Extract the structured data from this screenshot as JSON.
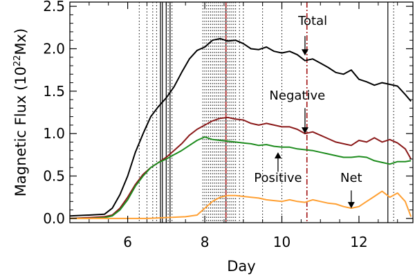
{
  "chart_data": {
    "type": "line",
    "xlabel": "Day",
    "ylabel": "Magnetic Flux (10",
    "ylabel_sup": "22",
    "ylabel_tail": "Mx)",
    "xlim": [
      4.5,
      13.4
    ],
    "ylim": [
      -0.05,
      2.55
    ],
    "xticks": [
      6,
      8,
      10,
      12
    ],
    "xtick_labels": [
      "6",
      "8",
      "10",
      "12"
    ],
    "yticks": [
      0.0,
      0.5,
      1.0,
      1.5,
      2.0,
      2.5
    ],
    "ytick_labels": [
      "0.0",
      "0.5",
      "1.0",
      "1.5",
      "2.0",
      "2.5"
    ],
    "series": [
      {
        "name": "Total",
        "color": "#000000",
        "x": [
          4.5,
          5.0,
          5.4,
          5.6,
          5.8,
          6.0,
          6.2,
          6.4,
          6.6,
          6.8,
          7.0,
          7.2,
          7.4,
          7.6,
          7.8,
          8.0,
          8.2,
          8.4,
          8.6,
          8.8,
          9.0,
          9.2,
          9.4,
          9.6,
          9.8,
          10.0,
          10.2,
          10.4,
          10.6,
          10.8,
          11.0,
          11.2,
          11.4,
          11.6,
          11.8,
          12.0,
          12.2,
          12.4,
          12.6,
          12.8,
          13.0,
          13.2,
          13.35
        ],
        "y": [
          0.03,
          0.04,
          0.05,
          0.12,
          0.28,
          0.5,
          0.78,
          1.0,
          1.2,
          1.32,
          1.42,
          1.55,
          1.72,
          1.88,
          1.98,
          2.02,
          2.1,
          2.12,
          2.09,
          2.1,
          2.06,
          2.0,
          1.99,
          2.02,
          1.97,
          1.95,
          1.97,
          1.93,
          1.86,
          1.88,
          1.83,
          1.78,
          1.72,
          1.7,
          1.75,
          1.64,
          1.61,
          1.57,
          1.6,
          1.58,
          1.56,
          1.46,
          1.38
        ]
      },
      {
        "name": "Negative",
        "color": "#8b1a1a",
        "x": [
          4.5,
          5.0,
          5.4,
          5.6,
          5.8,
          6.0,
          6.2,
          6.4,
          6.6,
          6.8,
          7.0,
          7.2,
          7.4,
          7.6,
          7.8,
          8.0,
          8.2,
          8.4,
          8.6,
          8.8,
          9.0,
          9.2,
          9.4,
          9.6,
          9.8,
          10.0,
          10.2,
          10.4,
          10.6,
          10.8,
          11.0,
          11.2,
          11.4,
          11.6,
          11.8,
          12.0,
          12.2,
          12.4,
          12.6,
          12.8,
          13.0,
          13.2,
          13.35
        ],
        "y": [
          0.0,
          0.01,
          0.02,
          0.04,
          0.12,
          0.25,
          0.4,
          0.52,
          0.6,
          0.66,
          0.72,
          0.8,
          0.88,
          0.98,
          1.05,
          1.1,
          1.15,
          1.18,
          1.19,
          1.17,
          1.16,
          1.12,
          1.1,
          1.12,
          1.1,
          1.08,
          1.08,
          1.05,
          1.0,
          1.02,
          0.98,
          0.94,
          0.9,
          0.88,
          0.86,
          0.92,
          0.9,
          0.95,
          0.9,
          0.93,
          0.89,
          0.82,
          0.7
        ]
      },
      {
        "name": "Positive",
        "color": "#1e8c1e",
        "x": [
          4.5,
          5.0,
          5.4,
          5.6,
          5.8,
          6.0,
          6.2,
          6.4,
          6.6,
          6.8,
          7.0,
          7.2,
          7.4,
          7.6,
          7.8,
          8.0,
          8.2,
          8.4,
          8.6,
          8.8,
          9.0,
          9.2,
          9.4,
          9.6,
          9.8,
          10.0,
          10.2,
          10.4,
          10.6,
          10.8,
          11.0,
          11.2,
          11.4,
          11.6,
          11.8,
          12.0,
          12.2,
          12.4,
          12.6,
          12.8,
          13.0,
          13.2,
          13.35
        ],
        "y": [
          0.0,
          0.0,
          0.01,
          0.03,
          0.1,
          0.22,
          0.38,
          0.5,
          0.6,
          0.66,
          0.7,
          0.75,
          0.8,
          0.86,
          0.92,
          0.96,
          0.93,
          0.92,
          0.91,
          0.9,
          0.89,
          0.88,
          0.86,
          0.87,
          0.85,
          0.84,
          0.84,
          0.82,
          0.81,
          0.8,
          0.78,
          0.76,
          0.74,
          0.72,
          0.72,
          0.73,
          0.72,
          0.68,
          0.66,
          0.64,
          0.67,
          0.67,
          0.68
        ]
      },
      {
        "name": "Net",
        "color": "#ffa033",
        "x": [
          4.5,
          5.0,
          5.5,
          6.0,
          6.5,
          7.0,
          7.5,
          7.8,
          8.0,
          8.2,
          8.4,
          8.6,
          8.8,
          9.0,
          9.2,
          9.4,
          9.6,
          9.8,
          10.0,
          10.2,
          10.4,
          10.6,
          10.8,
          11.0,
          11.2,
          11.4,
          11.6,
          11.8,
          12.0,
          12.2,
          12.4,
          12.6,
          12.8,
          13.0,
          13.2,
          13.35
        ],
        "y": [
          0.0,
          0.0,
          0.0,
          0.0,
          0.0,
          0.01,
          0.02,
          0.04,
          0.12,
          0.2,
          0.25,
          0.27,
          0.27,
          0.26,
          0.25,
          0.24,
          0.22,
          0.21,
          0.2,
          0.22,
          0.2,
          0.19,
          0.22,
          0.2,
          0.18,
          0.17,
          0.14,
          0.12,
          0.14,
          0.2,
          0.26,
          0.32,
          0.25,
          0.3,
          0.2,
          0.02
        ]
      }
    ],
    "event_lines": {
      "dotted": [
        6.3,
        6.5,
        6.65,
        6.75,
        7.05,
        7.15,
        7.95,
        8.0,
        8.05,
        8.1,
        8.15,
        8.2,
        8.25,
        8.3,
        8.35,
        8.4,
        8.45,
        8.5,
        8.6,
        8.65,
        8.7,
        8.75,
        8.8,
        8.9,
        9.0,
        9.5,
        10.0,
        12.9
      ],
      "solid": [
        6.85,
        6.9,
        7.0,
        7.1,
        8.55,
        12.75
      ],
      "dashdot_red": [
        8.55,
        10.65
      ]
    },
    "annotations": [
      {
        "text": "Total",
        "text_x": 10.8,
        "text_y": 2.28,
        "arrow_x": 10.6,
        "arrow_from": 2.15,
        "arrow_to": 1.92
      },
      {
        "text": "Negative",
        "text_x": 10.4,
        "text_y": 1.4,
        "arrow_x": 10.6,
        "arrow_from": 1.3,
        "arrow_to": 1.0
      },
      {
        "text": "Positive",
        "text_x": 9.9,
        "text_y": 0.43,
        "arrow_x": 9.9,
        "arrow_from": 0.55,
        "arrow_to": 0.78
      },
      {
        "text": "Net",
        "text_x": 11.8,
        "text_y": 0.43,
        "arrow_x": 11.8,
        "arrow_from": 0.33,
        "arrow_to": 0.12
      }
    ]
  }
}
